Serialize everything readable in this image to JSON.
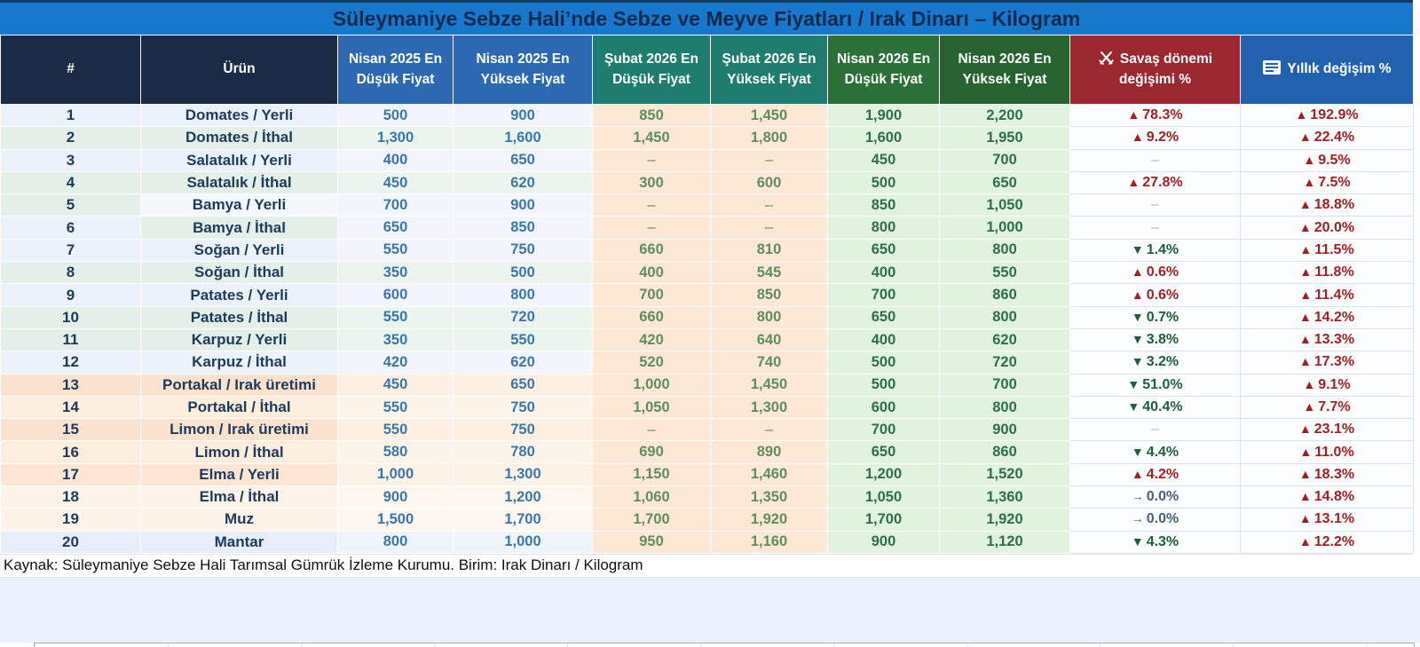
{
  "chart_data": {
    "type": "table",
    "title": "Süleymaniye Sebze Hali’nde Sebze ve Meyve Fiyatları / Irak Dinarı – Kilogram",
    "source": "Kaynak: Süleymaniye Sebze Hali Tarımsal Gümrük İzleme Kurumu. Birim: Irak Dinarı / Kilogram",
    "unit": "Irak Dinarı / Kilogram",
    "legend": {
      "up_marker": "▲",
      "down_marker": "▼",
      "flat_marker": "→",
      "up_color": "#a51e22",
      "down_color": "#1e5f38",
      "flat_color": "#47617f"
    },
    "columns": [
      {
        "key": "num",
        "label": "#",
        "bg": "#1b2a45"
      },
      {
        "key": "urun",
        "label": "Ürün",
        "bg": "#1b2a45"
      },
      {
        "key": "n25low",
        "label": "Nisan 2025 En Düşük Fiyat",
        "bg": "#2d68b2"
      },
      {
        "key": "n25high",
        "label": "Nisan 2025 En Yüksek Fiyat",
        "bg": "#2d68b2"
      },
      {
        "key": "s26low",
        "label": "Şubat 2026 En Düşük Fiyat",
        "bg": "#1e7d6e"
      },
      {
        "key": "s26high",
        "label": "Şubat 2026 En Yüksek Fiyat",
        "bg": "#1e7d6e"
      },
      {
        "key": "n26low",
        "label": "Nisan 2026 En Düşük Fiyat",
        "bg": "#2c7039"
      },
      {
        "key": "n26high",
        "label": "Nisan 2026 En Yüksek Fiyat",
        "bg": "#276331"
      },
      {
        "key": "war",
        "label": "Savaş dönemi değişimi %",
        "bg": "#9b2730",
        "icon": "crossed-swords-icon"
      },
      {
        "key": "annual",
        "label": "Yıllık değişim %",
        "bg": "#2261ae",
        "icon": "document-icon"
      }
    ],
    "rows": [
      {
        "num": "1",
        "product": "Domates / Yerli",
        "n25low": "500",
        "n25high": "900",
        "s26low": "850",
        "s26high": "1,450",
        "n26low": "1,900",
        "n26high": "2,200",
        "war": {
          "dir": "up",
          "val": "78.3%"
        },
        "annual": {
          "dir": "up",
          "val": "192.9%"
        },
        "bg": "#ecf2fb",
        "bg2": "#f2f6fc"
      },
      {
        "num": "2",
        "product": "Domates / İthal",
        "n25low": "1,300",
        "n25high": "1,600",
        "s26low": "1,450",
        "s26high": "1,800",
        "n26low": "1,600",
        "n26high": "1,950",
        "war": {
          "dir": "up",
          "val": "9.2%"
        },
        "annual": {
          "dir": "up",
          "val": "22.4%"
        },
        "bg": "#e4efe7",
        "bg2": "#ecf4ee"
      },
      {
        "num": "3",
        "product": "Salatalık / Yerli",
        "n25low": "400",
        "n25high": "650",
        "s26low": "–",
        "s26high": "–",
        "n26low": "450",
        "n26high": "700",
        "war": {
          "dir": "none",
          "val": "–"
        },
        "annual": {
          "dir": "up",
          "val": "9.5%"
        },
        "bg": "#ecf2fb",
        "bg2": "#f2f6fc"
      },
      {
        "num": "4",
        "product": "Salatalık / İthal",
        "n25low": "450",
        "n25high": "620",
        "s26low": "300",
        "s26high": "600",
        "n26low": "500",
        "n26high": "650",
        "war": {
          "dir": "up",
          "val": "27.8%"
        },
        "annual": {
          "dir": "up",
          "val": "7.5%"
        },
        "bg": "#e4efe7",
        "bg2": "#ecf4ee"
      },
      {
        "num": "5",
        "product": "Bamya / Yerli",
        "n25low": "700",
        "n25high": "900",
        "s26low": "–",
        "s26high": "–",
        "n26low": "850",
        "n26high": "1,050",
        "war": {
          "dir": "none",
          "val": "–"
        },
        "annual": {
          "dir": "up",
          "val": "18.8%"
        },
        "bg": "#e4efe7",
        "bg2": "#f2f6fc",
        "urunBg": "#f4f8fd"
      },
      {
        "num": "6",
        "product": "Bamya / İthal",
        "n25low": "650",
        "n25high": "850",
        "s26low": "–",
        "s26high": "–",
        "n26low": "800",
        "n26high": "1,000",
        "war": {
          "dir": "none",
          "val": "–"
        },
        "annual": {
          "dir": "up",
          "val": "20.0%"
        },
        "bg": "#ecf2fb",
        "bg2": "#f2f6fc",
        "urunBg": "#e4efe7"
      },
      {
        "num": "7",
        "product": "Soğan / Yerli",
        "n25low": "550",
        "n25high": "750",
        "s26low": "660",
        "s26high": "810",
        "n26low": "650",
        "n26high": "800",
        "war": {
          "dir": "down",
          "val": "1.4%"
        },
        "annual": {
          "dir": "up",
          "val": "11.5%"
        },
        "bg": "#ecf2fb",
        "bg2": "#f2f6fc"
      },
      {
        "num": "8",
        "product": "Soğan / İthal",
        "n25low": "350",
        "n25high": "500",
        "s26low": "400",
        "s26high": "545",
        "n26low": "400",
        "n26high": "550",
        "war": {
          "dir": "up",
          "val": "0.6%"
        },
        "annual": {
          "dir": "up",
          "val": "11.8%"
        },
        "bg": "#e4efe7",
        "bg2": "#ecf4ee"
      },
      {
        "num": "9",
        "product": "Patates / Yerli",
        "n25low": "600",
        "n25high": "800",
        "s26low": "700",
        "s26high": "850",
        "n26low": "700",
        "n26high": "860",
        "war": {
          "dir": "up",
          "val": "0.6%"
        },
        "annual": {
          "dir": "up",
          "val": "11.4%"
        },
        "bg": "#ecf2fb",
        "bg2": "#f2f6fc"
      },
      {
        "num": "10",
        "product": "Patates / İthal",
        "n25low": "550",
        "n25high": "720",
        "s26low": "660",
        "s26high": "800",
        "n26low": "650",
        "n26high": "800",
        "war": {
          "dir": "down",
          "val": "0.7%"
        },
        "annual": {
          "dir": "up",
          "val": "14.2%"
        },
        "bg": "#e4efe7",
        "bg2": "#ecf4ee"
      },
      {
        "num": "11",
        "product": "Karpuz / Yerli",
        "n25low": "350",
        "n25high": "550",
        "s26low": "420",
        "s26high": "640",
        "n26low": "400",
        "n26high": "620",
        "war": {
          "dir": "down",
          "val": "3.8%"
        },
        "annual": {
          "dir": "up",
          "val": "13.3%"
        },
        "bg": "#e4efe7",
        "bg2": "#ecf4ee"
      },
      {
        "num": "12",
        "product": "Karpuz / İthal",
        "n25low": "420",
        "n25high": "620",
        "s26low": "520",
        "s26high": "740",
        "n26low": "500",
        "n26high": "720",
        "war": {
          "dir": "down",
          "val": "3.2%"
        },
        "annual": {
          "dir": "up",
          "val": "17.3%"
        },
        "bg": "#ecf2fb",
        "bg2": "#f2f6fc"
      },
      {
        "num": "13",
        "product": "Portakal / Irak üretimi",
        "n25low": "450",
        "n25high": "650",
        "s26low": "1,000",
        "s26high": "1,450",
        "n26low": "500",
        "n26high": "700",
        "war": {
          "dir": "down",
          "val": "51.0%"
        },
        "annual": {
          "dir": "up",
          "val": "9.1%"
        },
        "bg": "#fbe2cf",
        "bg2": "#fdf0e2"
      },
      {
        "num": "14",
        "product": "Portakal / İthal",
        "n25low": "550",
        "n25high": "750",
        "s26low": "1,050",
        "s26high": "1,300",
        "n26low": "600",
        "n26high": "800",
        "war": {
          "dir": "down",
          "val": "40.4%"
        },
        "annual": {
          "dir": "up",
          "val": "7.7%"
        },
        "bg": "#fdeddc",
        "bg2": "#fdf4e9"
      },
      {
        "num": "15",
        "product": "Limon / Irak üretimi",
        "n25low": "550",
        "n25high": "750",
        "s26low": "–",
        "s26high": "–",
        "n26low": "700",
        "n26high": "900",
        "war": {
          "dir": "none",
          "val": "–"
        },
        "annual": {
          "dir": "up",
          "val": "23.1%"
        },
        "bg": "#fbe2cf",
        "bg2": "#fdf0e2"
      },
      {
        "num": "16",
        "product": "Limon / İthal",
        "n25low": "580",
        "n25high": "780",
        "s26low": "690",
        "s26high": "890",
        "n26low": "650",
        "n26high": "860",
        "war": {
          "dir": "down",
          "val": "4.4%"
        },
        "annual": {
          "dir": "up",
          "val": "11.0%"
        },
        "bg": "#fdeddc",
        "bg2": "#fdf4e9"
      },
      {
        "num": "17",
        "product": "Elma / Yerli",
        "n25low": "1,000",
        "n25high": "1,300",
        "s26low": "1,150",
        "s26high": "1,460",
        "n26low": "1,200",
        "n26high": "1,520",
        "war": {
          "dir": "up",
          "val": "4.2%"
        },
        "annual": {
          "dir": "up",
          "val": "18.3%"
        },
        "bg": "#fce6d3",
        "bg2": "#fdf2e6"
      },
      {
        "num": "18",
        "product": "Elma / İthal",
        "n25low": "900",
        "n25high": "1,200",
        "s26low": "1,060",
        "s26high": "1,350",
        "n26low": "1,050",
        "n26high": "1,360",
        "war": {
          "dir": "flat",
          "val": "0.0%"
        },
        "annual": {
          "dir": "up",
          "val": "14.8%"
        },
        "bg": "#fdf3e9",
        "bg2": "#fef7ef"
      },
      {
        "num": "19",
        "product": "Muz",
        "n25low": "1,500",
        "n25high": "1,700",
        "s26low": "1,700",
        "s26high": "1,920",
        "n26low": "1,700",
        "n26high": "1,920",
        "war": {
          "dir": "flat",
          "val": "0.0%"
        },
        "annual": {
          "dir": "up",
          "val": "13.1%"
        },
        "bg": "#fdf3e9",
        "bg2": "#fef7ef"
      },
      {
        "num": "20",
        "product": "Mantar",
        "n25low": "800",
        "n25high": "1,000",
        "s26low": "950",
        "s26high": "1,160",
        "n26low": "900",
        "n26high": "1,120",
        "war": {
          "dir": "down",
          "val": "4.3%"
        },
        "annual": {
          "dir": "up",
          "val": "12.2%"
        },
        "bg": "#e7eef9",
        "bg2": "#eff4fb"
      }
    ]
  }
}
